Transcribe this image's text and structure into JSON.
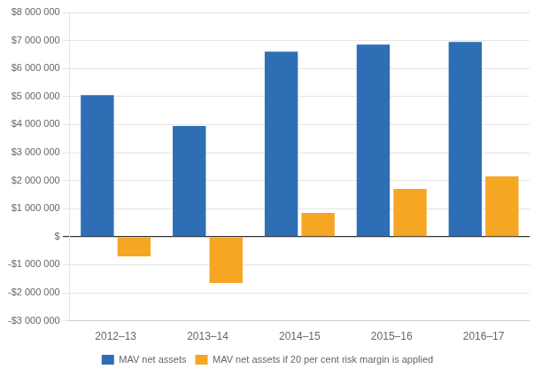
{
  "chart_data": {
    "type": "bar",
    "categories": [
      "2012–13",
      "2013–14",
      "2014–15",
      "2015–16",
      "2016–17"
    ],
    "series": [
      {
        "name": "MAV net assets",
        "color": "#2E6EB5",
        "values": [
          5050000,
          3950000,
          6600000,
          6850000,
          6950000
        ]
      },
      {
        "name": "MAV net assets if 20 per cent risk margin is applied",
        "color": "#F5A623",
        "values": [
          -700000,
          -1650000,
          850000,
          1700000,
          2150000
        ]
      }
    ],
    "ylim": [
      -3000000,
      8000000
    ],
    "yticks": [
      {
        "value": -3000000,
        "label": "-$3 000 000"
      },
      {
        "value": -2000000,
        "label": "-$2 000 000"
      },
      {
        "value": -1000000,
        "label": "-$1 000 000"
      },
      {
        "value": 0,
        "label": "$"
      },
      {
        "value": 1000000,
        "label": "$1 000 000"
      },
      {
        "value": 2000000,
        "label": "$2 000 000"
      },
      {
        "value": 3000000,
        "label": "$3 000 000"
      },
      {
        "value": 4000000,
        "label": "$4 000 000"
      },
      {
        "value": 5000000,
        "label": "$5 000 000"
      },
      {
        "value": 6000000,
        "label": "$6 000 000"
      },
      {
        "value": 7000000,
        "label": "$7 000 000"
      },
      {
        "value": 8000000,
        "label": "$8 000 000"
      }
    ],
    "grid": true,
    "legend": "bottom"
  }
}
